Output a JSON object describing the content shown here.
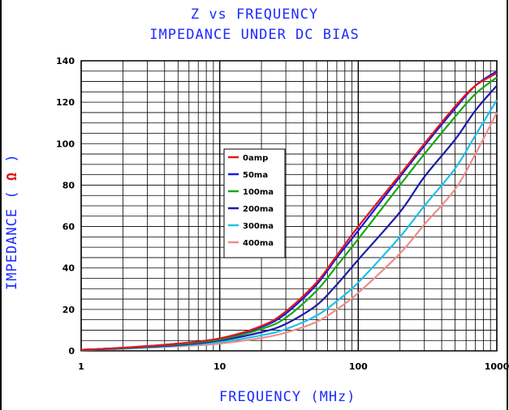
{
  "chart_data": {
    "type": "line",
    "title": "Z vs FREQUENCY",
    "subtitle": "IMPEDANCE UNDER DC BIAS",
    "xlabel": "FREQUENCY (MHz)",
    "ylabel": "IMPEDANCE (",
    "ylabel_symbol": "Ω",
    "ylabel_end": ")",
    "x_scale": "log",
    "xlim": [
      1,
      1000
    ],
    "ylim": [
      0,
      140
    ],
    "x_ticks": [
      "1",
      "10",
      "100",
      "1000"
    ],
    "y_ticks": [
      "0",
      "20",
      "40",
      "60",
      "80",
      "100",
      "120",
      "140"
    ],
    "grid": true,
    "legend_position": "center-left",
    "x": [
      1,
      2,
      5,
      10,
      20,
      30,
      50,
      70,
      100,
      200,
      300,
      500,
      700,
      1000
    ],
    "series": [
      {
        "name": "0amp",
        "color": "#e01818",
        "values": [
          0.5,
          1.5,
          3.5,
          6,
          12,
          19,
          33,
          46,
          60,
          85,
          100,
          118,
          128,
          134
        ]
      },
      {
        "name": "50ma",
        "color": "#1a1ae0",
        "values": [
          0.5,
          1.5,
          3.5,
          6,
          11.5,
          18,
          32,
          45,
          58,
          84,
          99,
          117,
          128,
          135
        ]
      },
      {
        "name": "100ma",
        "color": "#14a814",
        "values": [
          0.5,
          1.4,
          3.2,
          5.5,
          10.5,
          16,
          29,
          41,
          54,
          80,
          95,
          113,
          124,
          132
        ]
      },
      {
        "name": "200ma",
        "color": "#1c1ca8",
        "values": [
          0.4,
          1.3,
          2.8,
          5,
          9,
          13,
          22,
          32,
          44,
          67,
          84,
          102,
          116,
          128
        ]
      },
      {
        "name": "300ma",
        "color": "#20c0e8",
        "values": [
          0.4,
          1.1,
          2.5,
          4.2,
          7.5,
          10.5,
          17,
          24,
          33,
          55,
          70,
          88,
          104,
          121
        ]
      },
      {
        "name": "400ma",
        "color": "#f08c8c",
        "values": [
          0.3,
          1.0,
          2.2,
          3.5,
          6.2,
          8.8,
          14,
          20,
          28,
          47,
          61,
          78,
          95,
          115
        ]
      }
    ]
  }
}
